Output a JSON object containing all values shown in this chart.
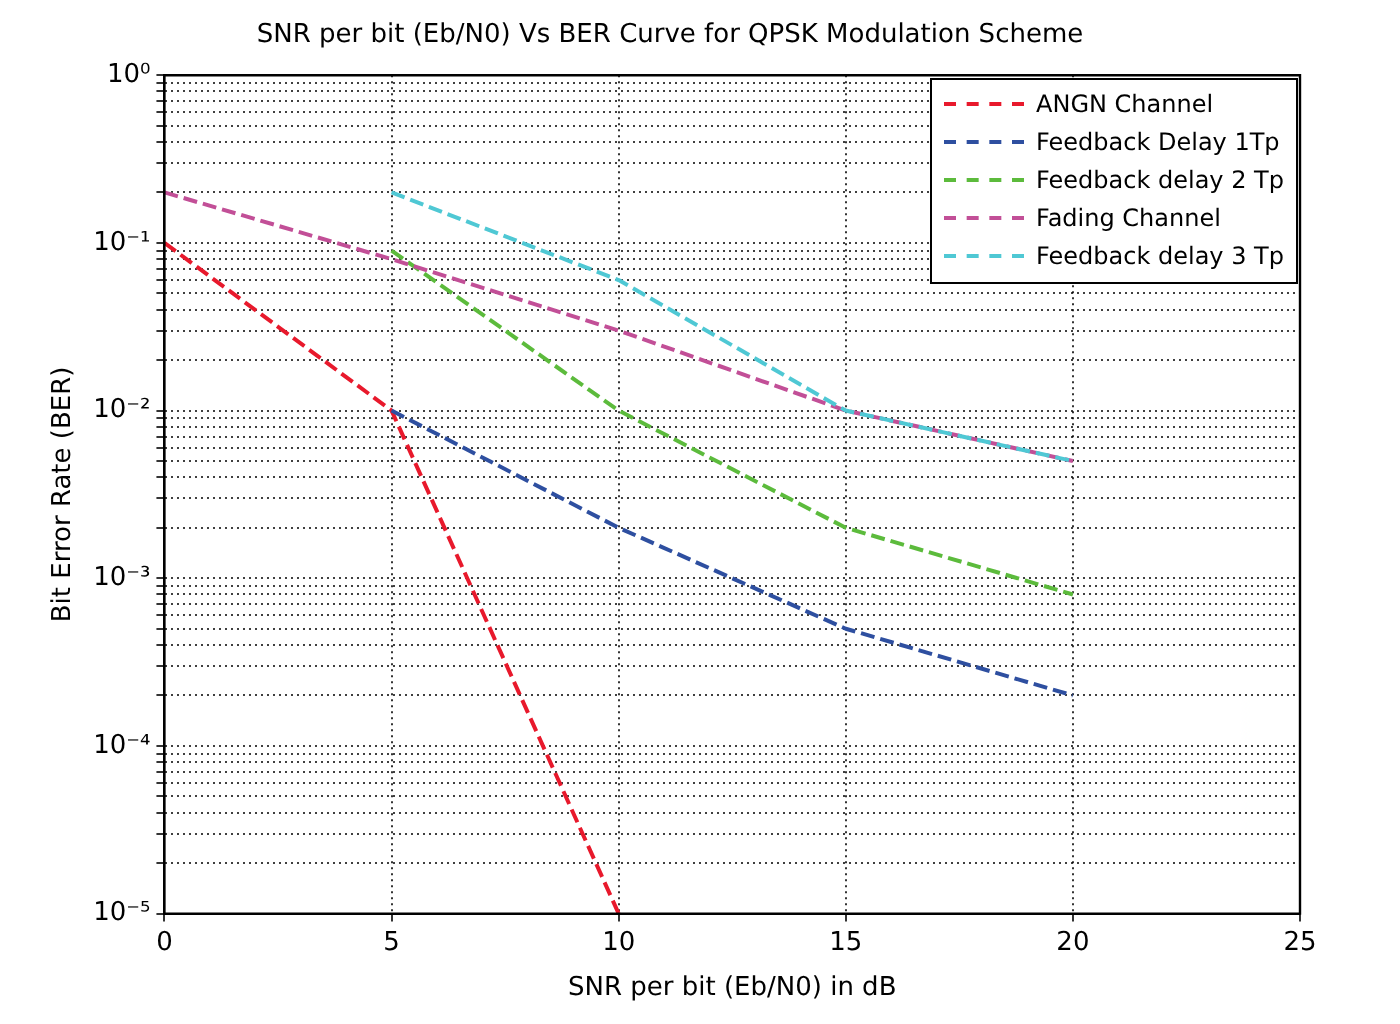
{
  "chart_data": {
    "type": "line",
    "title": "SNR per bit (Eb/N0) Vs BER Curve for QPSK Modulation Scheme",
    "xlabel": "SNR per bit (Eb/N0) in dB",
    "ylabel": "Bit Error Rate (BER)",
    "series": [
      {
        "name": "ANGN Channel",
        "color": "#e8192c",
        "x": [
          0,
          5,
          10
        ],
        "values": [
          0.1,
          0.01,
          1e-05
        ]
      },
      {
        "name": "Feedback Delay 1Tp",
        "color": "#2e4fa0",
        "x": [
          5,
          10,
          15,
          20
        ],
        "values": [
          0.01,
          0.002,
          0.0005,
          0.0002
        ]
      },
      {
        "name": "Feedback delay 2 Tp",
        "color": "#5cbb3c",
        "x": [
          5,
          10,
          15,
          20
        ],
        "values": [
          0.09,
          0.01,
          0.002,
          0.0008
        ]
      },
      {
        "name": "Fading Channel",
        "color": "#c24f97",
        "x": [
          0,
          5,
          10,
          15,
          20
        ],
        "values": [
          0.2,
          0.08,
          0.03,
          0.01,
          0.005
        ]
      },
      {
        "name": "Feedback delay 3 Tp",
        "color": "#4fc8d4",
        "x": [
          5,
          10,
          15,
          20
        ],
        "values": [
          0.2,
          0.06,
          0.01,
          0.005
        ]
      }
    ],
    "log": "y",
    "xlim": [
      0,
      25
    ],
    "xticks": [
      0,
      5,
      10,
      15,
      20,
      25
    ],
    "ylim": [
      1e-05,
      1
    ],
    "yticks": [
      {
        "value": 1e-05,
        "label": "10⁻⁵"
      },
      {
        "value": 2e-05,
        "label": null
      },
      {
        "value": 3e-05,
        "label": null
      },
      {
        "value": 4e-05,
        "label": null
      },
      {
        "value": 5e-05,
        "label": null
      },
      {
        "value": 6e-05,
        "label": null
      },
      {
        "value": 7e-05,
        "label": null
      },
      {
        "value": 8e-05,
        "label": null
      },
      {
        "value": 9e-05,
        "label": null
      },
      {
        "value": 0.0001,
        "label": "10⁻⁴"
      },
      {
        "value": 0.0002,
        "label": null
      },
      {
        "value": 0.0003,
        "label": null
      },
      {
        "value": 0.0004,
        "label": null
      },
      {
        "value": 0.0005,
        "label": null
      },
      {
        "value": 0.0006,
        "label": null
      },
      {
        "value": 0.0007,
        "label": null
      },
      {
        "value": 0.0008,
        "label": null
      },
      {
        "value": 0.0009,
        "label": null
      },
      {
        "value": 0.001,
        "label": "10⁻³"
      },
      {
        "value": 0.002,
        "label": null
      },
      {
        "value": 0.003,
        "label": null
      },
      {
        "value": 0.004,
        "label": null
      },
      {
        "value": 0.005,
        "label": null
      },
      {
        "value": 0.006,
        "label": null
      },
      {
        "value": 0.007,
        "label": null
      },
      {
        "value": 0.008,
        "label": null
      },
      {
        "value": 0.009,
        "label": null
      },
      {
        "value": 0.01,
        "label": "10⁻²"
      },
      {
        "value": 0.02,
        "label": null
      },
      {
        "value": 0.03,
        "label": null
      },
      {
        "value": 0.04,
        "label": null
      },
      {
        "value": 0.05,
        "label": null
      },
      {
        "value": 0.06,
        "label": null
      },
      {
        "value": 0.07,
        "label": null
      },
      {
        "value": 0.08,
        "label": null
      },
      {
        "value": 0.09,
        "label": null
      },
      {
        "value": 0.1,
        "label": "10⁻¹"
      },
      {
        "value": 0.2,
        "label": null
      },
      {
        "value": 0.3,
        "label": null
      },
      {
        "value": 0.4,
        "label": null
      },
      {
        "value": 0.5,
        "label": null
      },
      {
        "value": 0.6,
        "label": null
      },
      {
        "value": 0.7,
        "label": null
      },
      {
        "value": 0.8,
        "label": null
      },
      {
        "value": 0.9,
        "label": null
      },
      {
        "value": 1,
        "label": "10⁰"
      }
    ],
    "grid": true,
    "legend": "top right",
    "marker": "none",
    "line_style": "dashed"
  }
}
